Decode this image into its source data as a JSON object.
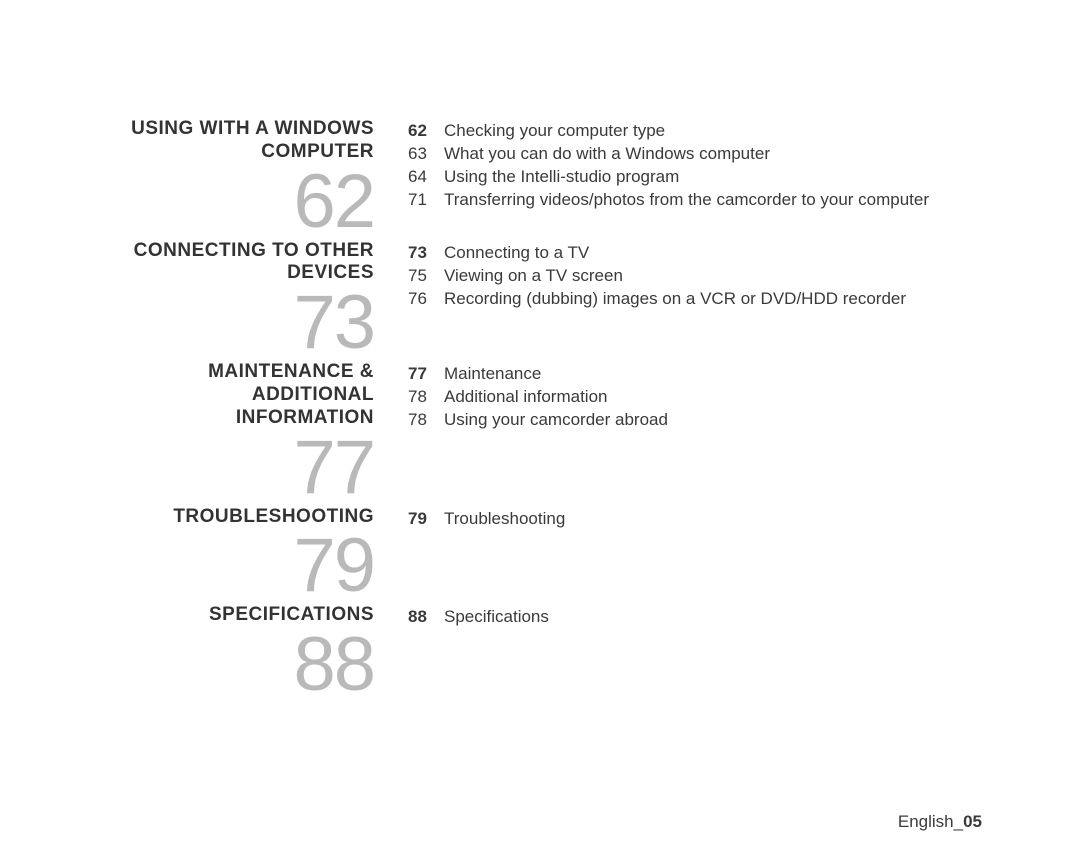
{
  "page": {
    "footer_label": "English_",
    "footer_page": "05",
    "text_color": "#3a3a3a",
    "big_number_color": "#b9b9b9",
    "background": "#ffffff",
    "title_fontsize": 19,
    "body_fontsize": 17,
    "bignum_fontsize": 76
  },
  "sections": [
    {
      "title_lines": [
        "USING WITH A WINDOWS",
        "COMPUTER"
      ],
      "big_number": "62",
      "items": [
        {
          "page": "62",
          "bold": true,
          "text": "Checking your computer type"
        },
        {
          "page": "63",
          "bold": false,
          "text": "What you can do with a Windows computer"
        },
        {
          "page": "64",
          "bold": false,
          "text": "Using the Intelli-studio program"
        },
        {
          "page": "71",
          "bold": false,
          "text": "Transferring videos/photos from the camcorder to your computer"
        }
      ]
    },
    {
      "title_lines": [
        "CONNECTING TO OTHER",
        "DEVICES"
      ],
      "big_number": "73",
      "items": [
        {
          "page": "73",
          "bold": true,
          "text": "Connecting to a TV"
        },
        {
          "page": "75",
          "bold": false,
          "text": "Viewing on a TV screen"
        },
        {
          "page": "76",
          "bold": false,
          "text": "Recording (dubbing) images on a VCR or DVD/HDD recorder"
        }
      ]
    },
    {
      "title_lines": [
        "MAINTENANCE & ADDITIONAL",
        "INFORMATION"
      ],
      "big_number": "77",
      "items": [
        {
          "page": "77",
          "bold": true,
          "text": "Maintenance"
        },
        {
          "page": "78",
          "bold": false,
          "text": "Additional information"
        },
        {
          "page": "78",
          "bold": false,
          "text": "Using your camcorder abroad"
        }
      ]
    },
    {
      "title_lines": [
        "TROUBLESHOOTING"
      ],
      "big_number": "79",
      "items": [
        {
          "page": "79",
          "bold": true,
          "text": "Troubleshooting"
        }
      ]
    },
    {
      "title_lines": [
        "SPECIFICATIONS"
      ],
      "big_number": "88",
      "items": [
        {
          "page": "88",
          "bold": true,
          "text": "Specifications"
        }
      ]
    }
  ]
}
